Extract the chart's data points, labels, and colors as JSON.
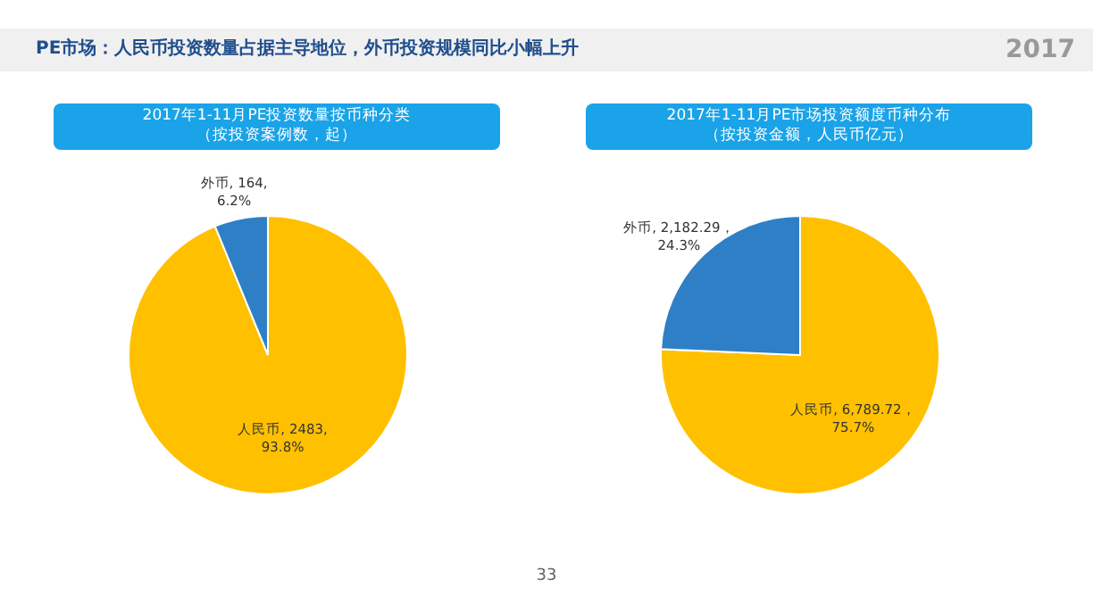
{
  "chart_data": [
    {
      "type": "pie",
      "title": "2017年1-11月PE投资数量按币种分类",
      "subtitle": "（按投资案例数，起）",
      "annotations": [
        "PE市场：人民币投资数量占据主导地位，外币投资规模同比小幅上升",
        "2017",
        "33"
      ],
      "categories": [
        "人民币",
        "外币"
      ],
      "values": [
        2483,
        164
      ],
      "colors": [
        "#ffc000",
        "#2e7fc6"
      ],
      "value_labels": [
        "2483, 93.8%",
        "164, 6.2%"
      ]
    },
    {
      "type": "pie",
      "title": "2017年1-11月PE市场投资额度币种分布",
      "subtitle": "（按投资金额，人民币亿元）",
      "categories": [
        "人民币",
        "外币"
      ],
      "values": [
        6789.72,
        2182.29
      ],
      "colors": [
        "#ffc000",
        "#2e7fc6"
      ],
      "value_labels": [
        "6,789.72，75.7%",
        "2,182.29，24.3%"
      ]
    }
  ]
}
